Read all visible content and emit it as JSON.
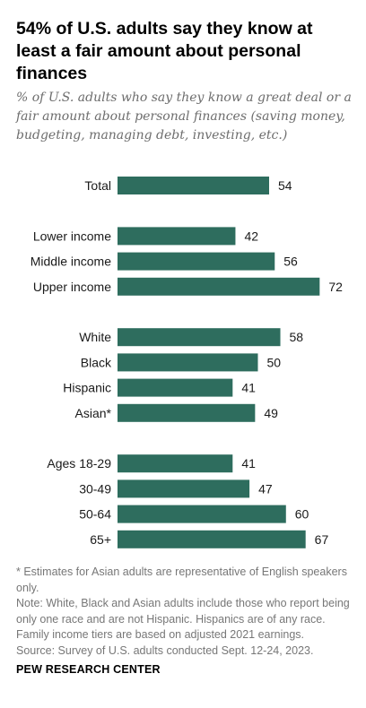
{
  "title": "54% of U.S. adults say they know at least a fair amount about personal finances",
  "subtitle": "% of U.S. adults who say they know a great deal or a fair amount about personal finances (saving money, budgeting, managing debt, investing, etc.)",
  "notes": {
    "footnote": "* Estimates for Asian adults are representative of English speakers only.",
    "note": "Note: White, Black and Asian adults include those who report being only one race and are not Hispanic. Hispanics are of any race. Family income tiers are based on adjusted 2021 earnings.",
    "source": "Source: Survey of U.S. adults conducted Sept. 12-24, 2023."
  },
  "org": "PEW RESEARCH CENTER",
  "chart_data": {
    "type": "bar",
    "orientation": "horizontal",
    "bar_color": "#2e6d5e",
    "xlim": [
      0,
      100
    ],
    "grid": false,
    "legend": "none",
    "categories": [
      "Total",
      "Lower income",
      "Middle income",
      "Upper income",
      "White",
      "Black",
      "Hispanic",
      "Asian*",
      "Ages 18-29",
      "30-49",
      "50-64",
      "65+"
    ],
    "values": [
      54,
      42,
      56,
      72,
      58,
      50,
      41,
      49,
      41,
      47,
      60,
      67
    ],
    "groups": [
      [
        0
      ],
      [
        1,
        2,
        3
      ],
      [
        4,
        5,
        6,
        7
      ],
      [
        8,
        9,
        10,
        11
      ]
    ]
  }
}
